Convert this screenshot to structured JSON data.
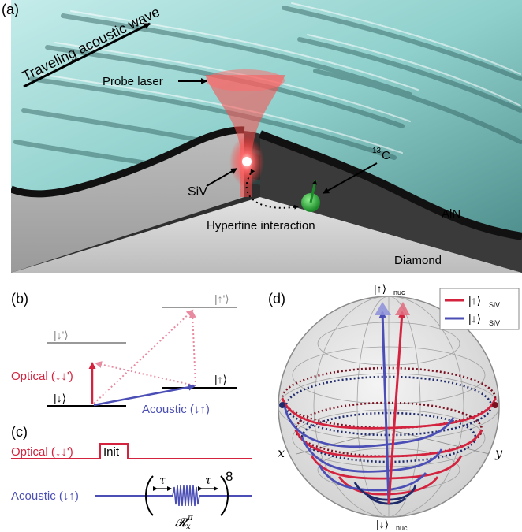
{
  "panels": {
    "a": {
      "label": "(a)",
      "traveling_wave": "Traveling acoustic wave",
      "probe_laser": "Probe laser",
      "siv": "SiV",
      "c13_sup": "13",
      "c13_main": "C",
      "aln": "AlN",
      "diamond": "Diamond",
      "hyperfine": "Hyperfine interaction"
    },
    "b": {
      "label": "(b)",
      "level_down": "|↓⟩",
      "level_down_excited": "|↓'⟩",
      "level_up": "|↑⟩",
      "level_up_excited": "|↑'⟩",
      "optical": "Optical (↓↓')",
      "acoustic": "Acoustic (↓↑)"
    },
    "c": {
      "label": "(c)",
      "optical": "Optical (↓↓')",
      "init": "Init",
      "acoustic": "Acoustic (↓↑)",
      "tau": "τ",
      "exponent": "8",
      "rotation": "𝓡",
      "rotation_sub": "x",
      "rotation_sup": "π"
    },
    "d": {
      "label": "(d)",
      "top_state": "|↑⟩",
      "top_sub": "nuc",
      "bottom_state": "|↓⟩",
      "bottom_sub": "nuc",
      "axis_x": "x",
      "axis_y": "y",
      "legend": [
        {
          "state": "|↑⟩",
          "sub": "SiV",
          "color": "#d4233e"
        },
        {
          "state": "|↓⟩",
          "sub": "SiV",
          "color": "#4b4fb5"
        }
      ]
    }
  },
  "colors": {
    "red": "#d4233e",
    "blue": "#4b4fb5",
    "pink": "#e0607c",
    "dark_red": "#7a1020",
    "dark_blue": "#1f2a6b",
    "teal": "#8fd3cf",
    "gray": "#b9b9b9"
  }
}
